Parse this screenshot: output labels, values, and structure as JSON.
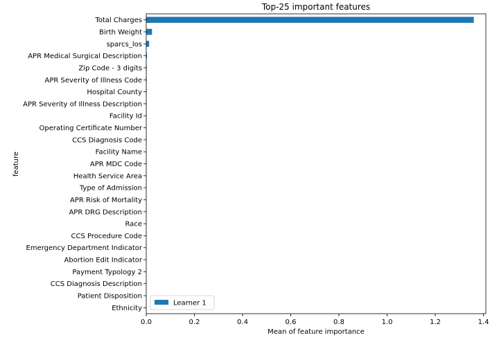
{
  "chart_data": {
    "type": "bar",
    "orientation": "horizontal",
    "title": "Top-25 important features",
    "xlabel": "Mean of feature importance",
    "ylabel": "feature",
    "xlim": [
      0,
      1.41
    ],
    "xticks": [
      0.0,
      0.2,
      0.4,
      0.6,
      0.8,
      1.0,
      1.2,
      1.4
    ],
    "grid": false,
    "legend_position": "bottom-left",
    "colors": {
      "bar": "#1f77b4"
    },
    "categories": [
      "Total Charges",
      "Birth Weight",
      "sparcs_los",
      "APR Medical Surgical Description",
      "Zip Code - 3 digits",
      "APR Severity of Illness Code",
      "Hospital County",
      "APR Severity of Illness Description",
      "Facility Id",
      "Operating Certificate Number",
      "CCS Diagnosis Code",
      "Facility Name",
      "APR MDC Code",
      "Health Service Area",
      "Type of Admission",
      "APR Risk of Mortality",
      "APR DRG Description",
      "Race",
      "CCS Procedure Code",
      "Emergency Department Indicator",
      "Abortion Edit Indicator",
      "Payment Typology 2",
      "CCS Diagnosis Description",
      "Patient Disposition",
      "Ethnicity"
    ],
    "series": [
      {
        "name": "Learner 1",
        "values": [
          1.36,
          0.024,
          0.012,
          0.003,
          0.002,
          0.002,
          0.0015,
          0.0015,
          0.0012,
          0.0012,
          0.001,
          0.001,
          0.001,
          0.0009,
          0.0009,
          0.0008,
          0.0008,
          0.0007,
          0.0007,
          0.0006,
          0.0006,
          0.0005,
          0.0005,
          0.0004,
          0.0004
        ]
      }
    ]
  }
}
